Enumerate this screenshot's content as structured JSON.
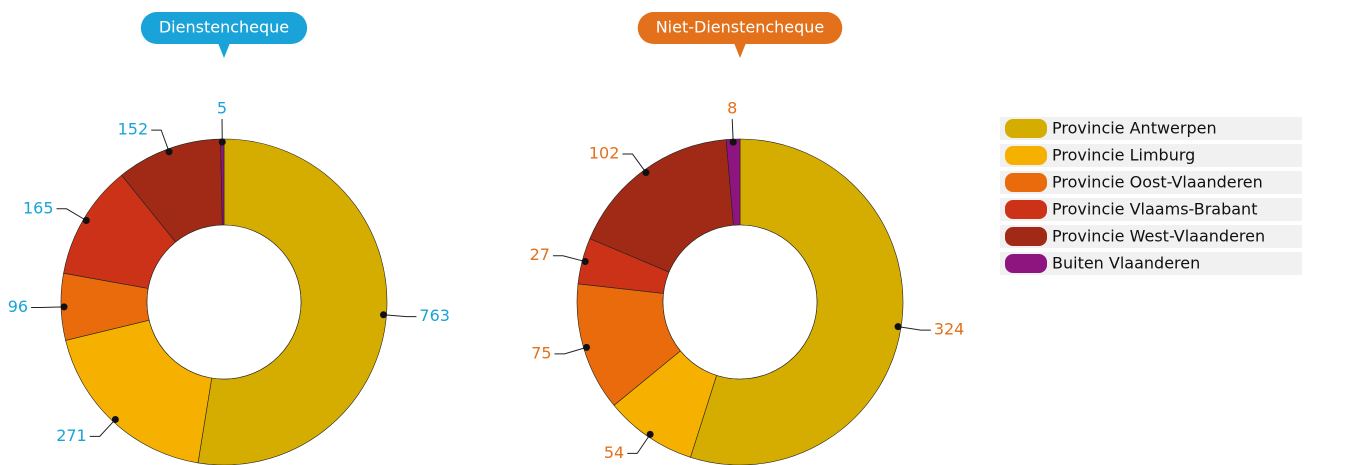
{
  "chart_data": [
    {
      "type": "pie",
      "title": "Dienstencheque",
      "accent": "#1aa3d9",
      "categories": [
        "Provincie Antwerpen",
        "Provincie Limburg",
        "Provincie Oost-Vlaanderen",
        "Provincie Vlaams-Brabant",
        "Provincie West-Vlaanderen",
        "Buiten Vlaanderen"
      ],
      "values": [
        763,
        271,
        96,
        165,
        152,
        5
      ],
      "colors": [
        "#d4ad00",
        "#f5b000",
        "#e96b0c",
        "#cc3218",
        "#a02a16",
        "#8e1480"
      ]
    },
    {
      "type": "pie",
      "title": "Niet-Dienstencheque",
      "accent": "#e3701a",
      "categories": [
        "Provincie Antwerpen",
        "Provincie Limburg",
        "Provincie Oost-Vlaanderen",
        "Provincie Vlaams-Brabant",
        "Provincie West-Vlaanderen",
        "Buiten Vlaanderen"
      ],
      "values": [
        324,
        54,
        75,
        27,
        102,
        8
      ],
      "colors": [
        "#d4ad00",
        "#f5b000",
        "#e96b0c",
        "#cc3218",
        "#a02a16",
        "#8e1480"
      ]
    }
  ]
}
